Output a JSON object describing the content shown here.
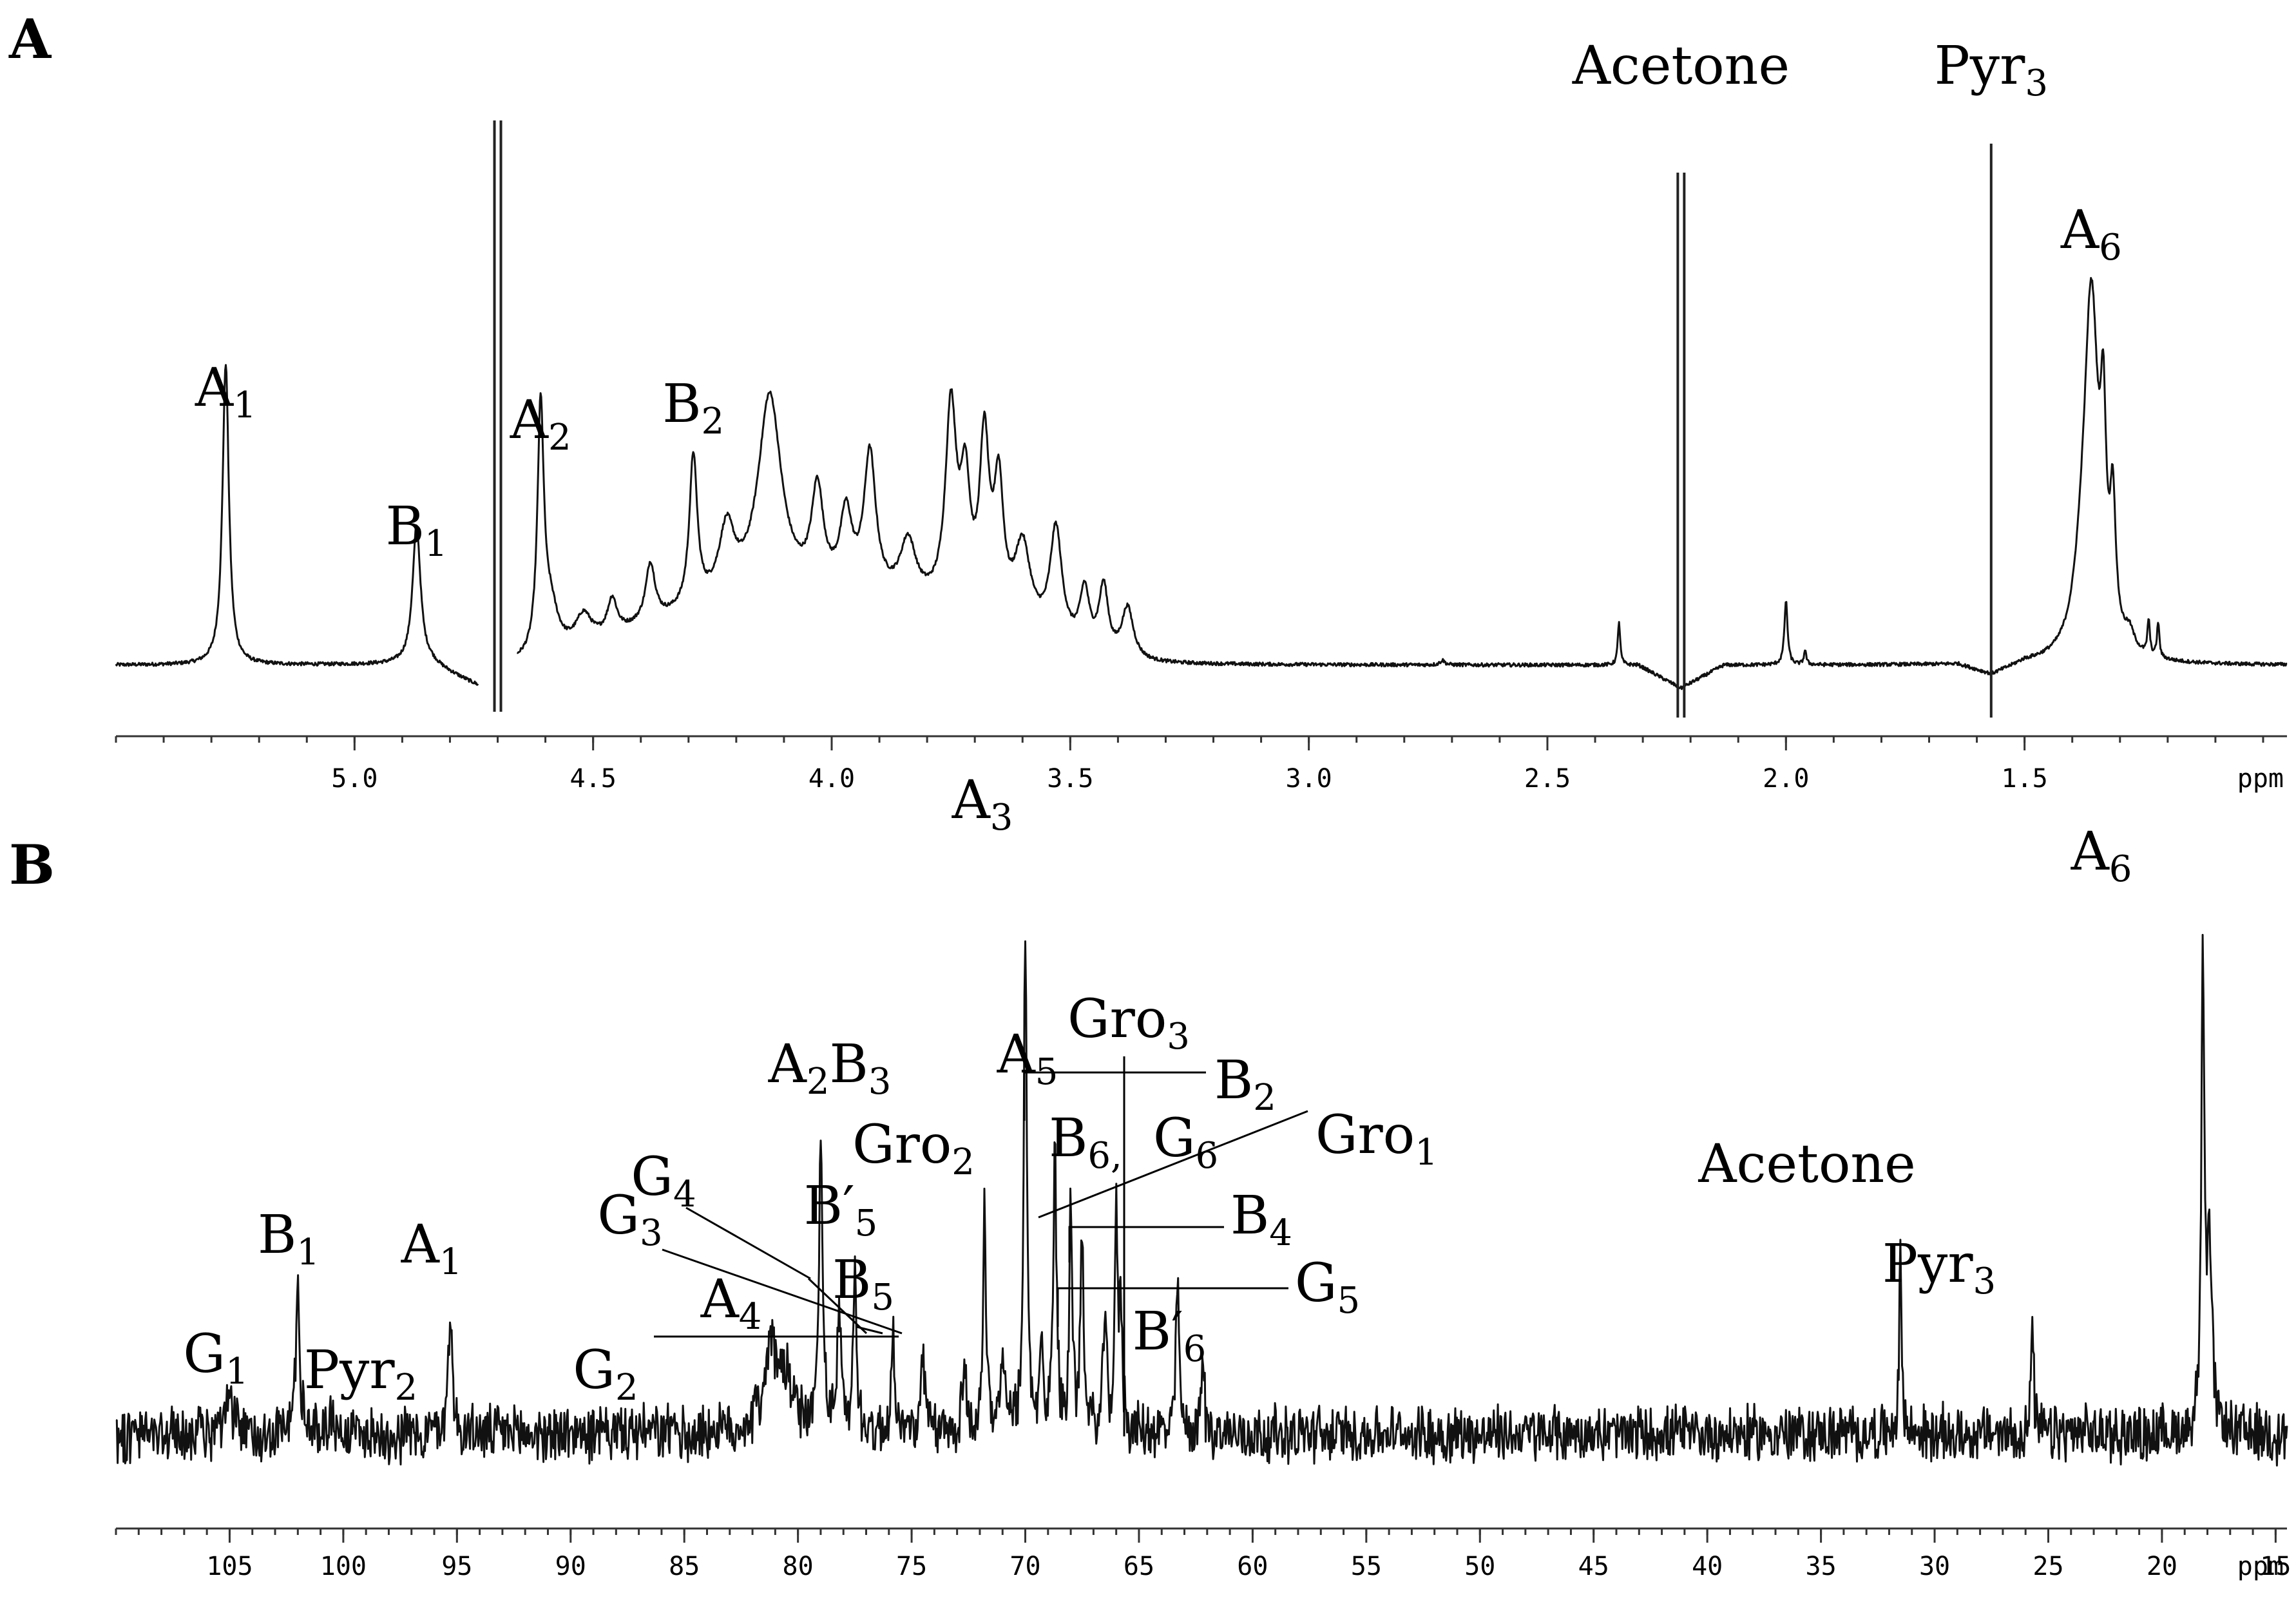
{
  "chart_data": [
    {
      "type": "line",
      "panel": "A",
      "xlim": [
        5.5,
        0.95
      ],
      "xunit": "ppm",
      "ticks": [
        5.0,
        4.5,
        4.0,
        3.5,
        3.0,
        2.5,
        2.0,
        1.5
      ],
      "tick_labels": [
        "5.0",
        "4.5",
        "4.0",
        "3.5",
        "3.0",
        "2.5",
        "2.0",
        "1.5"
      ],
      "baseline": 0.03,
      "gap": [
        4.74,
        4.66
      ],
      "peaks": [
        {
          "x": 5.27,
          "h": 0.52,
          "w": 0.008
        },
        {
          "x": 4.87,
          "h": 0.24,
          "w": 0.01
        },
        {
          "x": 4.61,
          "h": 0.42,
          "w": 0.008
        },
        {
          "x": 4.59,
          "h": 0.08,
          "w": 0.02
        },
        {
          "x": 4.52,
          "h": 0.05,
          "w": 0.02
        },
        {
          "x": 4.46,
          "h": 0.06,
          "w": 0.012
        },
        {
          "x": 4.38,
          "h": 0.1,
          "w": 0.012
        },
        {
          "x": 4.29,
          "h": 0.26,
          "w": 0.01
        },
        {
          "x": 4.22,
          "h": 0.12,
          "w": 0.02
        },
        {
          "x": 4.13,
          "h": 0.35,
          "w": 0.03
        },
        {
          "x": 4.03,
          "h": 0.17,
          "w": 0.015
        },
        {
          "x": 3.97,
          "h": 0.13,
          "w": 0.015
        },
        {
          "x": 3.92,
          "h": 0.24,
          "w": 0.015
        },
        {
          "x": 3.84,
          "h": 0.1,
          "w": 0.02
        },
        {
          "x": 3.75,
          "h": 0.34,
          "w": 0.014
        },
        {
          "x": 3.72,
          "h": 0.2,
          "w": 0.012
        },
        {
          "x": 3.68,
          "h": 0.29,
          "w": 0.012
        },
        {
          "x": 3.65,
          "h": 0.22,
          "w": 0.012
        },
        {
          "x": 3.6,
          "h": 0.14,
          "w": 0.02
        },
        {
          "x": 3.53,
          "h": 0.19,
          "w": 0.015
        },
        {
          "x": 3.47,
          "h": 0.1,
          "w": 0.012
        },
        {
          "x": 3.43,
          "h": 0.12,
          "w": 0.012
        },
        {
          "x": 3.38,
          "h": 0.09,
          "w": 0.015
        },
        {
          "x": 2.72,
          "h": 0.008,
          "w": 0.006
        },
        {
          "x": 2.35,
          "h": 0.075,
          "w": 0.003
        },
        {
          "x": 2.0,
          "h": 0.11,
          "w": 0.004
        },
        {
          "x": 1.96,
          "h": 0.025,
          "w": 0.003
        },
        {
          "x": 1.38,
          "h": 0.08,
          "w": 0.02
        },
        {
          "x": 1.36,
          "h": 0.6,
          "w": 0.018
        },
        {
          "x": 1.335,
          "h": 0.3,
          "w": 0.007
        },
        {
          "x": 1.315,
          "h": 0.22,
          "w": 0.007
        },
        {
          "x": 1.28,
          "h": 0.03,
          "w": 0.012
        },
        {
          "x": 1.24,
          "h": 0.06,
          "w": 0.003
        },
        {
          "x": 1.22,
          "h": 0.06,
          "w": 0.003
        }
      ],
      "bumps": [
        {
          "from": 4.62,
          "to": 3.3,
          "h": 0.11
        },
        {
          "from": 3.3,
          "to": 0.95,
          "h": 0.0
        }
      ],
      "solvent_lines": [
        {
          "x": 4.7,
          "y_top": 0.97,
          "y_bottom": -0.05,
          "double": true
        },
        {
          "x": 2.22,
          "y_top": 0.88,
          "y_bottom": -0.06,
          "double": true
        },
        {
          "x": 1.57,
          "y_top": 0.93,
          "y_bottom": -0.06,
          "double": false
        }
      ],
      "labels": [
        {
          "main": "A",
          "sub": "1",
          "x": 5.27
        },
        {
          "main": "B",
          "sub": "1",
          "x": 4.87
        },
        {
          "main": "A",
          "sub": "2",
          "x": 4.61
        },
        {
          "main": "B",
          "sub": "2",
          "x": 4.29
        },
        {
          "main": "Acetone",
          "sub": "",
          "x": 2.22
        },
        {
          "main": "Pyr",
          "sub": "3",
          "x": 1.57
        },
        {
          "main": "A",
          "sub": "6",
          "x": 1.36
        }
      ]
    },
    {
      "type": "line",
      "panel": "B",
      "xlim": [
        110,
        14.5
      ],
      "xunit": "ppm",
      "ticks": [
        105,
        100,
        95,
        90,
        85,
        80,
        75,
        70,
        65,
        60,
        55,
        50,
        45,
        40,
        35,
        30,
        25,
        20,
        15
      ],
      "tick_labels": [
        "105",
        "100",
        "95",
        "90",
        "85",
        "80",
        "75",
        "70",
        "65",
        "60",
        "55",
        "50",
        "45",
        "40",
        "35",
        "30",
        "25",
        "20",
        "15"
      ],
      "baseline": 0.08,
      "noise": 0.05,
      "peaks": [
        {
          "x": 105.0,
          "h": 0.06,
          "w": 0.15
        },
        {
          "x": 102.0,
          "h": 0.23,
          "w": 0.12
        },
        {
          "x": 100.5,
          "h": 0.04,
          "w": 0.12
        },
        {
          "x": 95.3,
          "h": 0.22,
          "w": 0.1
        },
        {
          "x": 81.2,
          "h": 0.14,
          "w": 0.4
        },
        {
          "x": 80.5,
          "h": 0.08,
          "w": 0.3
        },
        {
          "x": 79.0,
          "h": 0.48,
          "w": 0.1
        },
        {
          "x": 78.2,
          "h": 0.2,
          "w": 0.1
        },
        {
          "x": 77.5,
          "h": 0.25,
          "w": 0.1
        },
        {
          "x": 75.8,
          "h": 0.16,
          "w": 0.1
        },
        {
          "x": 74.5,
          "h": 0.12,
          "w": 0.1
        },
        {
          "x": 72.7,
          "h": 0.13,
          "w": 0.1
        },
        {
          "x": 71.8,
          "h": 0.36,
          "w": 0.08
        },
        {
          "x": 71.0,
          "h": 0.15,
          "w": 0.1
        },
        {
          "x": 70.0,
          "h": 0.84,
          "w": 0.08
        },
        {
          "x": 69.3,
          "h": 0.14,
          "w": 0.1
        },
        {
          "x": 68.7,
          "h": 0.5,
          "w": 0.08
        },
        {
          "x": 68.0,
          "h": 0.38,
          "w": 0.08
        },
        {
          "x": 67.5,
          "h": 0.35,
          "w": 0.08
        },
        {
          "x": 66.5,
          "h": 0.21,
          "w": 0.08
        },
        {
          "x": 66.0,
          "h": 0.34,
          "w": 0.08
        },
        {
          "x": 65.8,
          "h": 0.2,
          "w": 0.08
        },
        {
          "x": 63.3,
          "h": 0.26,
          "w": 0.08
        },
        {
          "x": 62.2,
          "h": 0.13,
          "w": 0.08
        },
        {
          "x": 31.5,
          "h": 0.32,
          "w": 0.06
        },
        {
          "x": 25.7,
          "h": 0.2,
          "w": 0.06
        },
        {
          "x": 18.2,
          "h": 0.79,
          "w": 0.08
        },
        {
          "x": 17.9,
          "h": 0.3,
          "w": 0.12
        }
      ],
      "labels": [
        {
          "main": "G",
          "sub": "1",
          "x": 104.8
        },
        {
          "main": "B",
          "sub": "1",
          "x": 102.0
        },
        {
          "main": "Pyr",
          "sub": "2",
          "x": 100.5
        },
        {
          "main": "A",
          "sub": "1",
          "x": 95.3
        },
        {
          "main": "G",
          "sub": "2",
          "x": 74.0
        },
        {
          "main": "A",
          "sub": "4",
          "x": 81.2
        },
        {
          "main": "G",
          "sub": "3",
          "x": 75.4
        },
        {
          "main": "G",
          "sub": "4",
          "x": 78.2
        },
        {
          "main": "B′",
          "sub": "5",
          "x": 77.5
        },
        {
          "main": "B",
          "sub": "5",
          "x": 75.8
        },
        {
          "main": "A",
          "sub": "2",
          "main2": "B",
          "sub2": "3",
          "x": 79.0
        },
        {
          "main": "Gro",
          "sub": "2",
          "x": 71.8
        },
        {
          "main": "A",
          "sub": "3",
          "x": 70.0
        },
        {
          "main": "A",
          "sub": "5",
          "x": 68.7
        },
        {
          "main": "Gro",
          "sub": "3",
          "x": 63.3
        },
        {
          "main": "B",
          "sub": "2",
          "x": 68.0
        },
        {
          "main": "B",
          "sub": "6,",
          "x": 66.0
        },
        {
          "main": "G",
          "sub": "6",
          "x": 66.0
        },
        {
          "main": "Gro",
          "sub": "1",
          "x": 67.5
        },
        {
          "main": "B",
          "sub": "4",
          "x": 66.0
        },
        {
          "main": "G",
          "sub": "5",
          "x": 66.5
        },
        {
          "main": "B′",
          "sub": "6",
          "x": 62.2
        },
        {
          "main": "Acetone",
          "sub": "",
          "x": 31.5
        },
        {
          "main": "Pyr",
          "sub": "3",
          "x": 25.7
        },
        {
          "main": "A",
          "sub": "6",
          "x": 18.2
        }
      ]
    }
  ],
  "panel_letters": [
    "A",
    "B"
  ],
  "axis_unit_label": "ppm"
}
